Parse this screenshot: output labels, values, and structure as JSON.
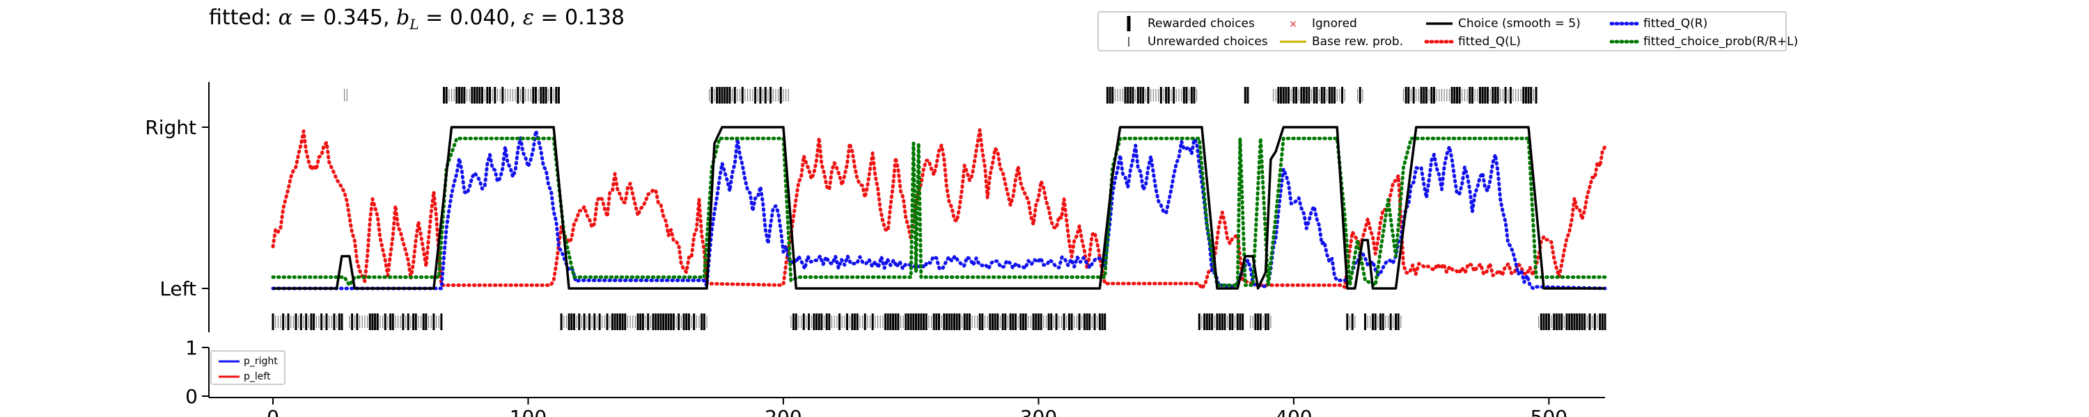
{
  "title_prefix": "fitted: ",
  "title_alpha_value": "0.345",
  "title_b_value": "0.040",
  "title_eps_value": "0.138",
  "chart_data": {
    "type": "line",
    "xlim": [
      0,
      522
    ],
    "main_y_ticks": [
      "Left",
      "Right"
    ],
    "prob_y_ticks": [
      "0",
      "1"
    ],
    "x_ticks": [
      0,
      100,
      200,
      300,
      400,
      500
    ],
    "legend": {
      "rewarded": "Rewarded choices",
      "unrewarded": "Unrewarded choices",
      "ignored": "Ignored",
      "base_rew": "Base rew. prob.",
      "choice_smooth": "Choice (smooth = 5)",
      "fitted_ql": "fitted_Q(L)",
      "fitted_qr": "fitted_Q(R)",
      "fitted_choice_prob": "fitted_choice_prob(R/R+L)"
    },
    "prob_legend": {
      "p_right": "p_right",
      "p_left": "p_left"
    },
    "colors": {
      "choice": "#000000",
      "ql": "#ee1111",
      "qr": "#1111ee",
      "choice_prob": "#007700",
      "base_rew": "#c8b400",
      "ignored": "#dd2222",
      "p_right": "#1111ee",
      "p_left": "#ee1111"
    },
    "right_blocks": [
      [
        28,
        29
      ],
      [
        67,
        112
      ],
      [
        171,
        202
      ],
      [
        327,
        362
      ],
      [
        381,
        382
      ],
      [
        392,
        420
      ],
      [
        425,
        427
      ],
      [
        443,
        495
      ]
    ],
    "choice_smooth": [
      [
        0,
        0
      ],
      [
        25,
        0
      ],
      [
        27,
        0.2
      ],
      [
        30,
        0.2
      ],
      [
        32,
        0
      ],
      [
        63,
        0
      ],
      [
        70,
        1
      ],
      [
        110,
        1
      ],
      [
        116,
        0
      ],
      [
        170,
        0
      ],
      [
        173,
        0.9
      ],
      [
        176,
        1
      ],
      [
        200,
        1
      ],
      [
        205,
        0
      ],
      [
        324,
        0
      ],
      [
        329,
        0.7
      ],
      [
        332,
        1
      ],
      [
        364,
        1
      ],
      [
        370,
        0
      ],
      [
        378,
        0
      ],
      [
        381,
        0.2
      ],
      [
        384,
        0.2
      ],
      [
        386,
        0
      ],
      [
        389,
        0.1
      ],
      [
        391,
        0.8
      ],
      [
        393,
        0.85
      ],
      [
        396,
        1
      ],
      [
        417,
        1
      ],
      [
        421,
        0
      ],
      [
        424,
        0
      ],
      [
        427,
        0.3
      ],
      [
        429,
        0.3
      ],
      [
        431,
        0
      ],
      [
        440,
        0
      ],
      [
        448,
        1
      ],
      [
        492,
        1
      ],
      [
        498,
        0
      ],
      [
        522,
        0
      ]
    ],
    "ql_sparse": [
      [
        0,
        0.3
      ],
      [
        3,
        0.4
      ],
      [
        6,
        0.63
      ],
      [
        9,
        0.75
      ],
      [
        12,
        0.95
      ],
      [
        15,
        0.72
      ],
      [
        18,
        0.8
      ],
      [
        21,
        0.88
      ],
      [
        24,
        0.68
      ],
      [
        27,
        0.62
      ],
      [
        30,
        0.45
      ],
      [
        33,
        0.18
      ],
      [
        36,
        0.05
      ],
      [
        39,
        0.55
      ],
      [
        42,
        0.35
      ],
      [
        45,
        0.08
      ],
      [
        48,
        0.48
      ],
      [
        51,
        0.3
      ],
      [
        54,
        0.06
      ],
      [
        57,
        0.43
      ],
      [
        60,
        0.15
      ],
      [
        63,
        0.62
      ],
      [
        66,
        0.02
      ],
      [
        110,
        0.02
      ],
      [
        113,
        0.38
      ],
      [
        116,
        0.25
      ],
      [
        119,
        0.45
      ],
      [
        122,
        0.52
      ],
      [
        125,
        0.35
      ],
      [
        128,
        0.6
      ],
      [
        131,
        0.48
      ],
      [
        134,
        0.7
      ],
      [
        137,
        0.53
      ],
      [
        140,
        0.62
      ],
      [
        143,
        0.42
      ],
      [
        146,
        0.58
      ],
      [
        149,
        0.65
      ],
      [
        152,
        0.5
      ],
      [
        155,
        0.35
      ],
      [
        158,
        0.3
      ],
      [
        161,
        0.12
      ],
      [
        164,
        0.18
      ],
      [
        167,
        0.52
      ],
      [
        170,
        0.03
      ],
      [
        200,
        0.02
      ],
      [
        205,
        0.58
      ],
      [
        208,
        0.8
      ],
      [
        211,
        0.68
      ],
      [
        214,
        0.9
      ],
      [
        217,
        0.6
      ],
      [
        220,
        0.75
      ],
      [
        223,
        0.62
      ],
      [
        226,
        0.88
      ],
      [
        229,
        0.7
      ],
      [
        232,
        0.56
      ],
      [
        235,
        0.82
      ],
      [
        238,
        0.5
      ],
      [
        241,
        0.32
      ],
      [
        244,
        0.78
      ],
      [
        247,
        0.55
      ],
      [
        250,
        0.3
      ],
      [
        253,
        0.6
      ],
      [
        256,
        0.82
      ],
      [
        259,
        0.7
      ],
      [
        262,
        0.9
      ],
      [
        265,
        0.55
      ],
      [
        268,
        0.4
      ],
      [
        271,
        0.75
      ],
      [
        274,
        0.68
      ],
      [
        277,
        0.95
      ],
      [
        280,
        0.6
      ],
      [
        283,
        0.85
      ],
      [
        286,
        0.75
      ],
      [
        289,
        0.55
      ],
      [
        292,
        0.72
      ],
      [
        295,
        0.6
      ],
      [
        298,
        0.4
      ],
      [
        301,
        0.65
      ],
      [
        304,
        0.5
      ],
      [
        307,
        0.35
      ],
      [
        310,
        0.52
      ],
      [
        313,
        0.22
      ],
      [
        316,
        0.42
      ],
      [
        319,
        0.12
      ],
      [
        322,
        0.38
      ],
      [
        326,
        0.03
      ],
      [
        364,
        0.03
      ],
      [
        368,
        0.15
      ],
      [
        372,
        0.45
      ],
      [
        375,
        0.25
      ],
      [
        378,
        0.32
      ],
      [
        380,
        0.05
      ],
      [
        386,
        0.02
      ],
      [
        420,
        0.02
      ],
      [
        423,
        0.35
      ],
      [
        426,
        0.25
      ],
      [
        429,
        0.4
      ],
      [
        432,
        0.22
      ],
      [
        435,
        0.45
      ],
      [
        438,
        0.6
      ],
      [
        441,
        0.68
      ],
      [
        443,
        0.12
      ],
      [
        495,
        0.12
      ],
      [
        498,
        0.35
      ],
      [
        501,
        0.25
      ],
      [
        504,
        0.05
      ],
      [
        507,
        0.3
      ],
      [
        510,
        0.55
      ],
      [
        513,
        0.45
      ],
      [
        516,
        0.62
      ],
      [
        519,
        0.75
      ],
      [
        522,
        0.88
      ]
    ],
    "qr_sparse": [
      [
        0,
        0
      ],
      [
        66,
        0
      ],
      [
        68,
        0.35
      ],
      [
        70,
        0.55
      ],
      [
        73,
        0.78
      ],
      [
        76,
        0.55
      ],
      [
        79,
        0.72
      ],
      [
        82,
        0.6
      ],
      [
        85,
        0.8
      ],
      [
        88,
        0.65
      ],
      [
        91,
        0.85
      ],
      [
        94,
        0.7
      ],
      [
        97,
        0.9
      ],
      [
        100,
        0.75
      ],
      [
        103,
        0.95
      ],
      [
        106,
        0.78
      ],
      [
        109,
        0.58
      ],
      [
        112,
        0.28
      ],
      [
        116,
        0.1
      ],
      [
        120,
        0.05
      ],
      [
        170,
        0.05
      ],
      [
        173,
        0.5
      ],
      [
        176,
        0.75
      ],
      [
        179,
        0.6
      ],
      [
        182,
        0.9
      ],
      [
        185,
        0.7
      ],
      [
        188,
        0.48
      ],
      [
        191,
        0.6
      ],
      [
        194,
        0.3
      ],
      [
        197,
        0.55
      ],
      [
        200,
        0.25
      ],
      [
        203,
        0.18
      ],
      [
        206,
        0.16
      ],
      [
        326,
        0.16
      ],
      [
        329,
        0.58
      ],
      [
        332,
        0.8
      ],
      [
        335,
        0.65
      ],
      [
        338,
        0.85
      ],
      [
        341,
        0.62
      ],
      [
        344,
        0.78
      ],
      [
        347,
        0.55
      ],
      [
        350,
        0.45
      ],
      [
        353,
        0.72
      ],
      [
        356,
        0.9
      ],
      [
        359,
        0.85
      ],
      [
        362,
        0.92
      ],
      [
        365,
        0.5
      ],
      [
        368,
        0.12
      ],
      [
        372,
        0.02
      ],
      [
        378,
        0.01
      ],
      [
        382,
        0.15
      ],
      [
        385,
        0.02
      ],
      [
        390,
        0.01
      ],
      [
        393,
        0.35
      ],
      [
        396,
        0.72
      ],
      [
        399,
        0.55
      ],
      [
        402,
        0.6
      ],
      [
        405,
        0.4
      ],
      [
        408,
        0.48
      ],
      [
        411,
        0.3
      ],
      [
        414,
        0.2
      ],
      [
        417,
        0.05
      ],
      [
        420,
        0.05
      ],
      [
        423,
        0.08
      ],
      [
        426,
        0.25
      ],
      [
        429,
        0.18
      ],
      [
        432,
        0.1
      ],
      [
        440,
        0.2
      ],
      [
        443,
        0.4
      ],
      [
        446,
        0.62
      ],
      [
        449,
        0.78
      ],
      [
        452,
        0.6
      ],
      [
        455,
        0.85
      ],
      [
        458,
        0.65
      ],
      [
        461,
        0.9
      ],
      [
        464,
        0.55
      ],
      [
        467,
        0.75
      ],
      [
        470,
        0.5
      ],
      [
        473,
        0.72
      ],
      [
        476,
        0.62
      ],
      [
        479,
        0.85
      ],
      [
        482,
        0.45
      ],
      [
        485,
        0.25
      ],
      [
        488,
        0.1
      ],
      [
        495,
        0.01
      ],
      [
        522,
        0
      ]
    ],
    "choice_prob_sparse": [
      [
        0,
        0.07
      ],
      [
        28,
        0.07
      ],
      [
        30,
        0.02
      ],
      [
        32,
        0.07
      ],
      [
        65,
        0.07
      ],
      [
        68,
        0.75
      ],
      [
        72,
        0.93
      ],
      [
        110,
        0.93
      ],
      [
        114,
        0.35
      ],
      [
        118,
        0.07
      ],
      [
        169,
        0.07
      ],
      [
        172,
        0.75
      ],
      [
        175,
        0.93
      ],
      [
        200,
        0.93
      ],
      [
        203,
        0.05
      ],
      [
        206,
        0.07
      ],
      [
        250,
        0.07
      ],
      [
        251,
        0.9
      ],
      [
        252,
        0.1
      ],
      [
        253,
        0.9
      ],
      [
        254,
        0.07
      ],
      [
        326,
        0.07
      ],
      [
        329,
        0.75
      ],
      [
        332,
        0.93
      ],
      [
        363,
        0.93
      ],
      [
        366,
        0.4
      ],
      [
        370,
        0.02
      ],
      [
        378,
        0.02
      ],
      [
        379,
        0.93
      ],
      [
        381,
        0.02
      ],
      [
        384,
        0.02
      ],
      [
        387,
        0.93
      ],
      [
        390,
        0.02
      ],
      [
        393,
        0.45
      ],
      [
        396,
        0.93
      ],
      [
        417,
        0.93
      ],
      [
        420,
        0.45
      ],
      [
        422,
        0.02
      ],
      [
        425,
        0.3
      ],
      [
        428,
        0.05
      ],
      [
        432,
        0.02
      ],
      [
        437,
        0.55
      ],
      [
        440,
        0.2
      ],
      [
        443,
        0.75
      ],
      [
        446,
        0.93
      ],
      [
        492,
        0.93
      ],
      [
        495,
        0.07
      ],
      [
        522,
        0.07
      ]
    ]
  }
}
